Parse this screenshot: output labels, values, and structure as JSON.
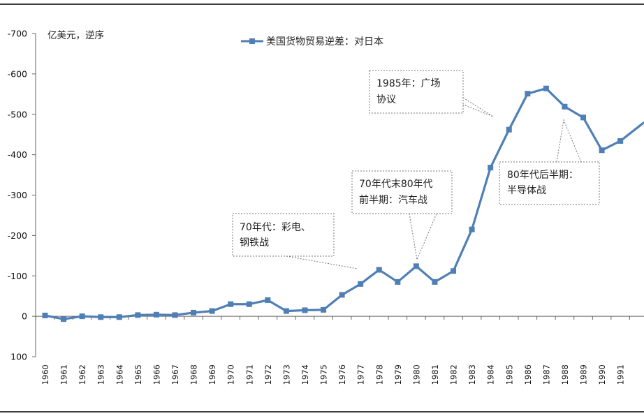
{
  "chart_data": {
    "type": "line",
    "title": "",
    "unit_label": "亿美元，逆序",
    "xlabel": "",
    "ylabel": "",
    "ylim": [
      100,
      -700
    ],
    "y_ticks": [
      -700,
      -600,
      -500,
      -400,
      -300,
      -200,
      -100,
      0,
      100
    ],
    "y_tick_labels": [
      "-700",
      "-600",
      "-500",
      "-400",
      "-300",
      "-200",
      "-100",
      "0",
      "100"
    ],
    "grid": false,
    "legend_position": "top",
    "categories": [
      "1960",
      "1961",
      "1962",
      "1963",
      "1964",
      "1965",
      "1966",
      "1967",
      "1968",
      "1969",
      "1970",
      "1971",
      "1972",
      "1973",
      "1974",
      "1975",
      "1976",
      "1977",
      "1978",
      "1979",
      "1980",
      "1981",
      "1982",
      "1983",
      "1984",
      "1985",
      "1986",
      "1987",
      "1988",
      "1989",
      "1990",
      "1991"
    ],
    "series": [
      {
        "name": "美国货物贸易逆差：对日本",
        "color": "#4f7fb5",
        "values": [
          -2,
          7,
          0,
          2,
          2,
          -3,
          -4,
          -3,
          -9,
          -13,
          -30,
          -30,
          -40,
          -13,
          -15,
          -16,
          -53,
          -80,
          -115,
          -85,
          -124,
          -85,
          -112,
          -215,
          -368,
          -462,
          -551,
          -564,
          -519,
          -492,
          -411,
          -434
        ]
      }
    ],
    "continuation_value": -470,
    "annotations": [
      {
        "lines": [
          "70年代：彩电、",
          "钢铁战"
        ]
      },
      {
        "lines": [
          "70年代末80年代",
          "前半期：汽车战"
        ]
      },
      {
        "lines": [
          "1985年：广场",
          "协议"
        ]
      },
      {
        "lines": [
          "80年代后半期：",
          "半导体战"
        ]
      }
    ]
  }
}
